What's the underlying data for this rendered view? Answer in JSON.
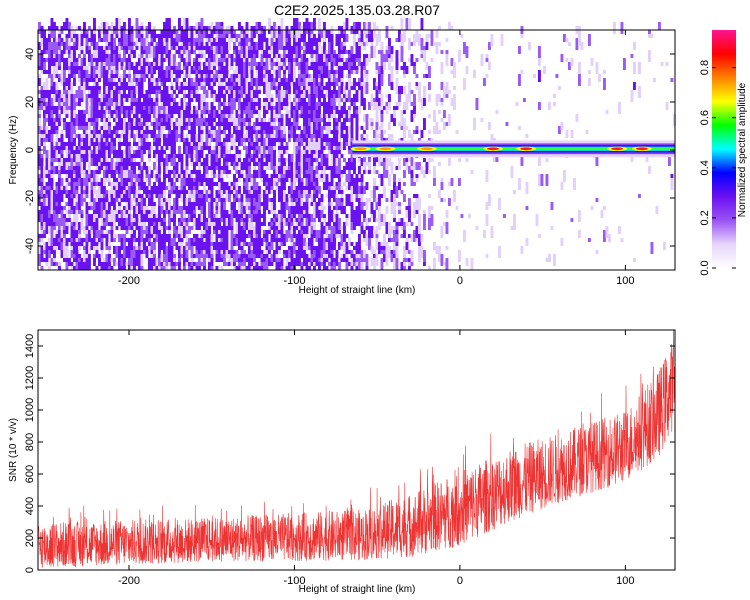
{
  "figure_title": "C2E2.2025.135.03.28.R07",
  "chart_data": [
    {
      "type": "heatmap",
      "xlabel": "Height of straight line (km)",
      "ylabel": "Frequency (Hz)",
      "xlim": [
        -255,
        130
      ],
      "ylim": [
        -50,
        50
      ],
      "x_ticks": [
        -200,
        -100,
        0,
        100
      ],
      "y_ticks": [
        -40,
        -20,
        0,
        20,
        40
      ],
      "colorbar": {
        "label": "Normalized spectral amplitude",
        "range": [
          0.0,
          0.95
        ],
        "ticks": [
          0.0,
          0.2,
          0.4,
          0.6,
          0.8
        ],
        "colormap": [
          "#ffffff",
          "#e6d4fa",
          "#9a52f5",
          "#6a10f0",
          "#0000ff",
          "#00ffff",
          "#00ff00",
          "#ffff00",
          "#ff8000",
          "#ff0000",
          "#ff1493"
        ]
      },
      "noise_region_x": [
        -255,
        -60
      ],
      "signal_line": {
        "freq": 0.5,
        "x_start": -65,
        "x_end": 130,
        "peaks": [
          {
            "x": -60,
            "amp": 0.45
          },
          {
            "x": -45,
            "amp": 0.5
          },
          {
            "x": -20,
            "amp": 0.55
          },
          {
            "x": 20,
            "amp": 0.85
          },
          {
            "x": 40,
            "amp": 0.9
          },
          {
            "x": 95,
            "amp": 0.85
          },
          {
            "x": 110,
            "amp": 0.9
          }
        ]
      }
    },
    {
      "type": "line",
      "xlabel": "Height of straight line (km)",
      "ylabel": "SNR (10 * v/v)",
      "xlim": [
        -255,
        130
      ],
      "ylim": [
        0,
        1500
      ],
      "x_ticks": [
        -200,
        -100,
        0,
        100
      ],
      "y_ticks": [
        0,
        200,
        400,
        600,
        800,
        1000,
        1200,
        1400
      ],
      "color": "#ee3333",
      "trend": [
        {
          "x": -255,
          "low": 10,
          "high": 300
        },
        {
          "x": -150,
          "low": 50,
          "high": 330
        },
        {
          "x": -60,
          "low": 60,
          "high": 380
        },
        {
          "x": -30,
          "low": 80,
          "high": 480
        },
        {
          "x": 0,
          "low": 150,
          "high": 620
        },
        {
          "x": 30,
          "low": 300,
          "high": 760
        },
        {
          "x": 60,
          "low": 420,
          "high": 860
        },
        {
          "x": 100,
          "low": 550,
          "high": 1000
        },
        {
          "x": 120,
          "low": 700,
          "high": 1250
        },
        {
          "x": 130,
          "low": 900,
          "high": 1480
        }
      ]
    }
  ]
}
